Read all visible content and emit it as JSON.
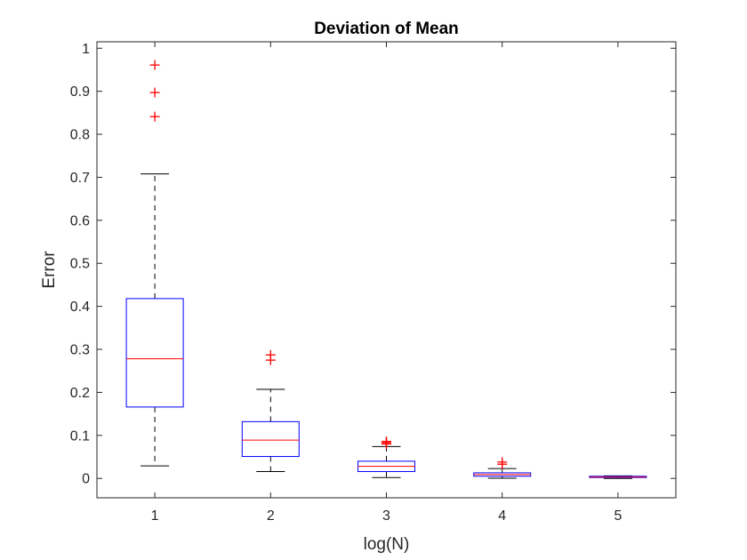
{
  "chart_data": {
    "type": "box",
    "title": "Deviation of Mean",
    "xlabel": "log(N)",
    "ylabel": "Error",
    "categories": [
      "1",
      "2",
      "3",
      "4",
      "5"
    ],
    "ylim": [
      -0.045,
      1.015
    ],
    "yticks": [
      0,
      0.1,
      0.2,
      0.3,
      0.4,
      0.5,
      0.6,
      0.7,
      0.8,
      0.9,
      1
    ],
    "ytick_labels": [
      "0",
      "0.1",
      "0.2",
      "0.3",
      "0.4",
      "0.5",
      "0.6",
      "0.7",
      "0.8",
      "0.9",
      "1"
    ],
    "grid": false,
    "boxes": [
      {
        "category": "1",
        "whisker_low": 0.029,
        "q1": 0.166,
        "median": 0.278,
        "q3": 0.418,
        "whisker_high": 0.708,
        "outliers": [
          0.841,
          0.897,
          0.961
        ]
      },
      {
        "category": "2",
        "whisker_low": 0.016,
        "q1": 0.051,
        "median": 0.089,
        "q3": 0.132,
        "whisker_high": 0.207,
        "outliers": [
          0.275,
          0.287
        ]
      },
      {
        "category": "3",
        "whisker_low": 0.002,
        "q1": 0.016,
        "median": 0.028,
        "q3": 0.04,
        "whisker_high": 0.074,
        "outliers": [
          0.08,
          0.083,
          0.086
        ]
      },
      {
        "category": "4",
        "whisker_low": 0.0005,
        "q1": 0.005,
        "median": 0.009,
        "q3": 0.013,
        "whisker_high": 0.023,
        "outliers": [
          0.033,
          0.038
        ]
      },
      {
        "category": "5",
        "whisker_low": 0.0,
        "q1": 0.002,
        "median": 0.003,
        "q3": 0.004,
        "whisker_high": 0.006,
        "outliers": []
      }
    ],
    "colors": {
      "box": "#0000ff",
      "median": "#ff0000",
      "whisker": "#000000",
      "outlier": "#ff0000",
      "axes": "#262626"
    }
  }
}
